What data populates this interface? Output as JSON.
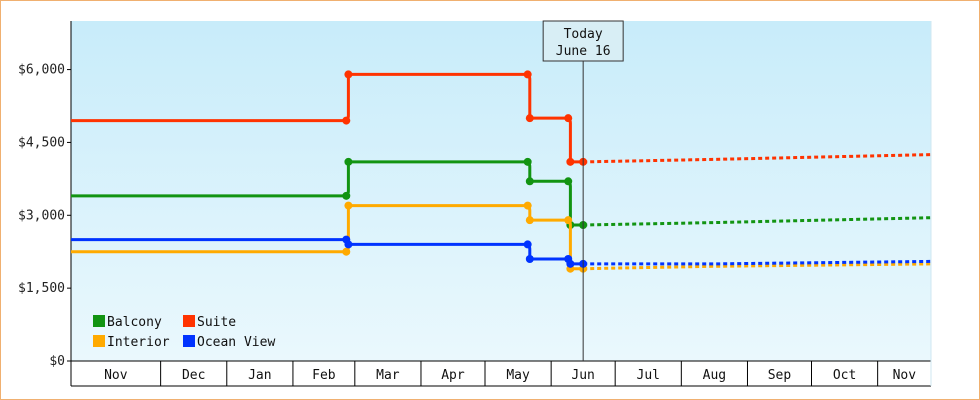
{
  "chart_data": {
    "type": "line",
    "title": "",
    "xlabel": "",
    "ylabel": "",
    "ylim": [
      0,
      7000
    ],
    "y_ticks": [
      0,
      1500,
      3000,
      4500,
      6000
    ],
    "y_tick_labels": [
      "$0",
      "$1,500",
      "$3,000",
      "$4,500",
      "$6,000"
    ],
    "x_range": [
      "2023-10-20",
      "2024-11-26"
    ],
    "x_months": [
      {
        "label": "Nov",
        "start": "2023-11-01"
      },
      {
        "label": "Dec",
        "start": "2023-12-01"
      },
      {
        "label": "Jan",
        "start": "2024-01-01"
      },
      {
        "label": "Feb",
        "start": "2024-02-01"
      },
      {
        "label": "Mar",
        "start": "2024-03-01"
      },
      {
        "label": "Apr",
        "start": "2024-04-01"
      },
      {
        "label": "May",
        "start": "2024-05-01"
      },
      {
        "label": "Jun",
        "start": "2024-06-01"
      },
      {
        "label": "Jul",
        "start": "2024-07-01"
      },
      {
        "label": "Aug",
        "start": "2024-08-01"
      },
      {
        "label": "Sep",
        "start": "2024-09-01"
      },
      {
        "label": "Oct",
        "start": "2024-10-01"
      },
      {
        "label": "Nov",
        "start": "2024-11-01"
      }
    ],
    "today": {
      "line1": "Today",
      "line2": "June 16",
      "date": "2024-06-16"
    },
    "step_style": true,
    "legend_position": "bottom-left",
    "grid": false,
    "background_gradient": [
      "#c8ecfa",
      "#eaf8fd"
    ],
    "series": [
      {
        "name": "Balcony",
        "color": "#129412",
        "points": [
          [
            "2023-10-20",
            3400
          ],
          [
            "2024-02-26",
            3400
          ],
          [
            "2024-02-27",
            4100
          ],
          [
            "2024-05-21",
            4100
          ],
          [
            "2024-05-22",
            3700
          ],
          [
            "2024-06-09",
            3700
          ],
          [
            "2024-06-10",
            2800
          ],
          [
            "2024-06-16",
            2800
          ]
        ],
        "projection": [
          [
            "2024-06-16",
            2800
          ],
          [
            "2024-08-16",
            2850
          ],
          [
            "2024-11-26",
            2950
          ]
        ]
      },
      {
        "name": "Suite",
        "color": "#ff3300",
        "points": [
          [
            "2023-10-20",
            4950
          ],
          [
            "2024-02-26",
            4950
          ],
          [
            "2024-02-27",
            5900
          ],
          [
            "2024-05-21",
            5900
          ],
          [
            "2024-05-22",
            5000
          ],
          [
            "2024-06-09",
            5000
          ],
          [
            "2024-06-10",
            4100
          ],
          [
            "2024-06-16",
            4100
          ]
        ],
        "projection": [
          [
            "2024-06-16",
            4100
          ],
          [
            "2024-08-16",
            4150
          ],
          [
            "2024-11-26",
            4250
          ]
        ]
      },
      {
        "name": "Interior",
        "color": "#ffaa00",
        "points": [
          [
            "2023-10-20",
            2250
          ],
          [
            "2024-02-26",
            2250
          ],
          [
            "2024-02-27",
            3200
          ],
          [
            "2024-05-21",
            3200
          ],
          [
            "2024-05-22",
            2900
          ],
          [
            "2024-06-09",
            2900
          ],
          [
            "2024-06-10",
            1900
          ],
          [
            "2024-06-16",
            1900
          ]
        ],
        "projection": [
          [
            "2024-06-16",
            1900
          ],
          [
            "2024-08-16",
            1950
          ],
          [
            "2024-11-26",
            2000
          ]
        ]
      },
      {
        "name": "Ocean View",
        "color": "#0033ff",
        "points": [
          [
            "2023-10-20",
            2500
          ],
          [
            "2024-02-26",
            2500
          ],
          [
            "2024-02-27",
            2400
          ],
          [
            "2024-05-21",
            2400
          ],
          [
            "2024-05-22",
            2100
          ],
          [
            "2024-06-09",
            2100
          ],
          [
            "2024-06-10",
            2000
          ],
          [
            "2024-06-16",
            2000
          ]
        ],
        "projection": [
          [
            "2024-06-16",
            2000
          ],
          [
            "2024-08-16",
            2000
          ],
          [
            "2024-11-26",
            2050
          ]
        ]
      }
    ]
  }
}
